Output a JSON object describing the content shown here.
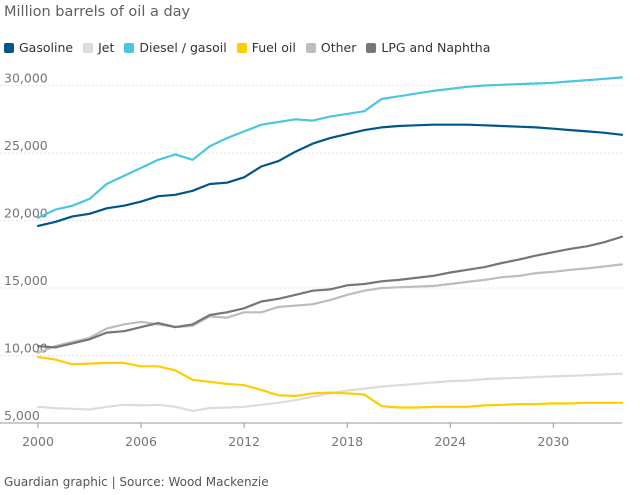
{
  "title": "Million barrels of oil a day",
  "source": "Guardian graphic | Source: Wood Mackenzie",
  "chart_data": {
    "type": "line",
    "title": "Million barrels of oil a day",
    "xlabel": "",
    "ylabel": "",
    "xlim": [
      2000,
      2034
    ],
    "ylim": [
      5000,
      31000
    ],
    "x_ticks": [
      2000,
      2006,
      2012,
      2018,
      2024,
      2030
    ],
    "y_ticks": [
      {
        "value": 5000,
        "label": "5,000"
      },
      {
        "value": 10000,
        "label": "10,000"
      },
      {
        "value": 15000,
        "label": "15,000"
      },
      {
        "value": 20000,
        "label": "20,000"
      },
      {
        "value": 25000,
        "label": "25,000"
      },
      {
        "value": 30000,
        "label": "30,000"
      }
    ],
    "grid": "horizontal",
    "legend_position": "top-left",
    "x": [
      2000,
      2001,
      2002,
      2003,
      2004,
      2005,
      2006,
      2007,
      2008,
      2009,
      2010,
      2011,
      2012,
      2013,
      2014,
      2015,
      2016,
      2017,
      2018,
      2019,
      2020,
      2021,
      2022,
      2023,
      2024,
      2025,
      2026,
      2027,
      2028,
      2029,
      2030,
      2031,
      2032,
      2033,
      2034
    ],
    "series": [
      {
        "name": "Gasoline",
        "color": "#005689",
        "values": [
          19600,
          19900,
          20300,
          20500,
          20900,
          21100,
          21400,
          21800,
          21900,
          22200,
          22700,
          22800,
          23200,
          24000,
          24400,
          25100,
          25700,
          26100,
          26400,
          26700,
          26900,
          27000,
          27050,
          27100,
          27100,
          27100,
          27050,
          27000,
          26950,
          26900,
          26800,
          26700,
          26600,
          26500,
          26350
        ]
      },
      {
        "name": "Jet",
        "color": "#dcdcdc",
        "values": [
          6200,
          6100,
          6050,
          6000,
          6200,
          6350,
          6300,
          6350,
          6200,
          5900,
          6100,
          6150,
          6200,
          6350,
          6500,
          6700,
          6950,
          7200,
          7400,
          7550,
          7700,
          7800,
          7900,
          8000,
          8100,
          8150,
          8250,
          8300,
          8350,
          8400,
          8450,
          8500,
          8550,
          8600,
          8650
        ]
      },
      {
        "name": "Diesel / gasoil",
        "color": "#4bc6df",
        "values": [
          20200,
          20800,
          21100,
          21600,
          22700,
          23300,
          23900,
          24500,
          24900,
          24500,
          25500,
          26100,
          26600,
          27100,
          27300,
          27500,
          27400,
          27700,
          27900,
          28100,
          29000,
          29200,
          29400,
          29600,
          29750,
          29900,
          30000,
          30050,
          30100,
          30150,
          30200,
          30300,
          30400,
          30500,
          30600
        ]
      },
      {
        "name": "Fuel oil",
        "color": "#ffce00",
        "values": [
          9900,
          9700,
          9350,
          9400,
          9450,
          9450,
          9200,
          9200,
          8900,
          8200,
          8050,
          7900,
          7800,
          7450,
          7050,
          7000,
          7200,
          7250,
          7200,
          7100,
          6250,
          6150,
          6150,
          6200,
          6200,
          6200,
          6300,
          6350,
          6400,
          6400,
          6450,
          6450,
          6500,
          6500,
          6500
        ]
      },
      {
        "name": "Other",
        "color": "#bdbdbd",
        "values": [
          10200,
          10700,
          11000,
          11300,
          12000,
          12300,
          12500,
          12300,
          12100,
          12200,
          12900,
          12800,
          13200,
          13200,
          13600,
          13700,
          13800,
          14100,
          14500,
          14800,
          15000,
          15050,
          15100,
          15150,
          15300,
          15450,
          15600,
          15800,
          15900,
          16100,
          16200,
          16350,
          16450,
          16600,
          16750
        ]
      },
      {
        "name": "LPG and Naphtha",
        "color": "#767676",
        "values": [
          10700,
          10600,
          10900,
          11200,
          11700,
          11800,
          12100,
          12400,
          12100,
          12300,
          13000,
          13200,
          13500,
          14000,
          14200,
          14500,
          14800,
          14900,
          15200,
          15300,
          15500,
          15600,
          15750,
          15900,
          16150,
          16350,
          16550,
          16850,
          17100,
          17400,
          17650,
          17900,
          18100,
          18400,
          18800
        ]
      }
    ]
  }
}
